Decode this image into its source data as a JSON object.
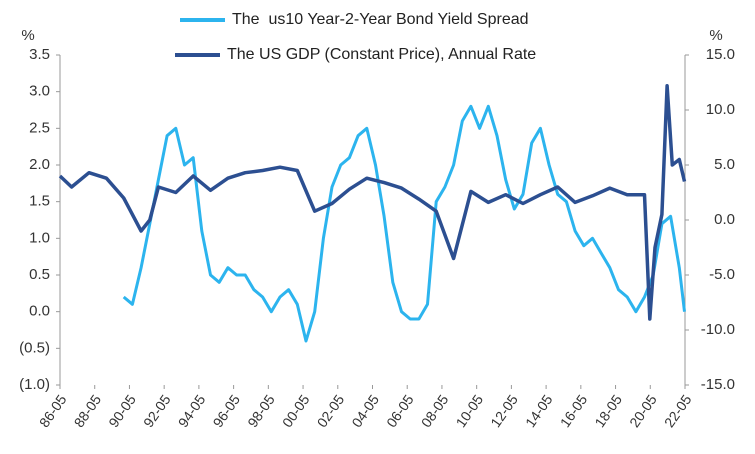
{
  "chart_data": {
    "type": "line",
    "y_label": "%",
    "y2_label": "%",
    "negative_tick_color": "#e03030",
    "xlim": [
      1986.33,
      2022.33
    ],
    "xticks": [
      {
        "value": 1986.33,
        "label": "86-05"
      },
      {
        "value": 1988.33,
        "label": "88-05"
      },
      {
        "value": 1990.33,
        "label": "90-05"
      },
      {
        "value": 1992.33,
        "label": "92-05"
      },
      {
        "value": 1994.33,
        "label": "94-05"
      },
      {
        "value": 1996.33,
        "label": "96-05"
      },
      {
        "value": 1998.33,
        "label": "98-05"
      },
      {
        "value": 2000.33,
        "label": "00-05"
      },
      {
        "value": 2002.33,
        "label": "02-05"
      },
      {
        "value": 2004.33,
        "label": "04-05"
      },
      {
        "value": 2006.33,
        "label": "06-05"
      },
      {
        "value": 2008.33,
        "label": "08-05"
      },
      {
        "value": 2010.33,
        "label": "10-05"
      },
      {
        "value": 2012.33,
        "label": "12-05"
      },
      {
        "value": 2014.33,
        "label": "14-05"
      },
      {
        "value": 2016.33,
        "label": "16-05"
      },
      {
        "value": 2018.33,
        "label": "18-05"
      },
      {
        "value": 2020.33,
        "label": "20-05"
      },
      {
        "value": 2022.33,
        "label": "22-05"
      }
    ],
    "ylim": [
      -1,
      3.5
    ],
    "yticks": [
      3.5,
      {
        "value": 3,
        "label": "3.0"
      },
      2.5,
      {
        "value": 2,
        "label": "2.0"
      },
      1.5,
      {
        "value": 1,
        "label": "1.0"
      },
      0.5,
      {
        "value": 0,
        "label": "0.0"
      },
      {
        "value": -0.5,
        "label": "(0.5)"
      },
      {
        "value": -1,
        "label": "(1.0)"
      }
    ],
    "y2lim": [
      -15,
      15
    ],
    "y2ticks": [
      {
        "value": 15,
        "label": "15.0"
      },
      {
        "value": 10,
        "label": "10.0"
      },
      {
        "value": 5,
        "label": "5.0"
      },
      {
        "value": 0,
        "label": "0.0"
      },
      {
        "value": -5,
        "label": "-5.0"
      },
      {
        "value": -10,
        "label": "-10.0"
      },
      {
        "value": -15,
        "label": "-15.0"
      }
    ],
    "series": [
      {
        "name": "The  us10 Year-2-Year Bond Yield Spread",
        "color": "#2cb4ee",
        "x": [
          1990.0,
          1990.5,
          1991.0,
          1991.5,
          1992.0,
          1992.5,
          1993.0,
          1993.5,
          1994.0,
          1994.5,
          1995.0,
          1995.5,
          1996.0,
          1996.5,
          1997.0,
          1997.5,
          1998.0,
          1998.5,
          1999.0,
          1999.5,
          2000.0,
          2000.5,
          2001.0,
          2001.5,
          2002.0,
          2002.5,
          2003.0,
          2003.5,
          2004.0,
          2004.5,
          2005.0,
          2005.5,
          2006.0,
          2006.5,
          2007.0,
          2007.5,
          2008.0,
          2008.5,
          2009.0,
          2009.5,
          2010.0,
          2010.5,
          2011.0,
          2011.5,
          2012.0,
          2012.5,
          2013.0,
          2013.5,
          2014.0,
          2014.5,
          2015.0,
          2015.5,
          2016.0,
          2016.5,
          2017.0,
          2017.5,
          2018.0,
          2018.5,
          2019.0,
          2019.5,
          2020.0,
          2020.5,
          2021.0,
          2021.5,
          2022.0,
          2022.3
        ],
        "values": [
          0.2,
          0.1,
          0.6,
          1.2,
          1.8,
          2.4,
          2.5,
          2.0,
          2.1,
          1.1,
          0.5,
          0.4,
          0.6,
          0.5,
          0.5,
          0.3,
          0.2,
          0.0,
          0.2,
          0.3,
          0.1,
          -0.4,
          0.0,
          1.0,
          1.7,
          2.0,
          2.1,
          2.4,
          2.5,
          2.0,
          1.3,
          0.4,
          0.0,
          -0.1,
          -0.1,
          0.1,
          1.5,
          1.7,
          2.0,
          2.6,
          2.8,
          2.5,
          2.8,
          2.4,
          1.8,
          1.4,
          1.6,
          2.3,
          2.5,
          2.0,
          1.6,
          1.5,
          1.1,
          0.9,
          1.0,
          0.8,
          0.6,
          0.3,
          0.2,
          0.0,
          0.2,
          0.5,
          1.2,
          1.3,
          0.6,
          0.0
        ]
      },
      {
        "name": "The US GDP (Constant Price), Annual Rate",
        "color": "#2c4f91",
        "axis": "y2",
        "x": [
          1986.33,
          1987,
          1988,
          1989,
          1990,
          1991,
          1991.5,
          1992,
          1993,
          1994,
          1995,
          1996,
          1997,
          1998,
          1999,
          2000,
          2001,
          2002,
          2003,
          2004,
          2005,
          2006,
          2007,
          2008,
          2009,
          2010,
          2011,
          2012,
          2013,
          2014,
          2015,
          2016,
          2017,
          2018,
          2019,
          2020.0,
          2020.3,
          2020.6,
          2021.0,
          2021.3,
          2021.6,
          2022.0,
          2022.3
        ],
        "values": [
          4,
          3,
          4.3,
          3.8,
          2.0,
          -1.0,
          0.0,
          3.0,
          2.5,
          4.0,
          2.7,
          3.8,
          4.3,
          4.5,
          4.8,
          4.5,
          0.8,
          1.5,
          2.8,
          3.8,
          3.4,
          2.9,
          1.9,
          0.8,
          -3.5,
          2.6,
          1.6,
          2.3,
          1.5,
          2.3,
          3.0,
          1.6,
          2.2,
          2.9,
          2.3,
          2.3,
          -9.0,
          -2.5,
          0.5,
          12.2,
          5.0,
          5.5,
          3.5
        ]
      }
    ]
  }
}
